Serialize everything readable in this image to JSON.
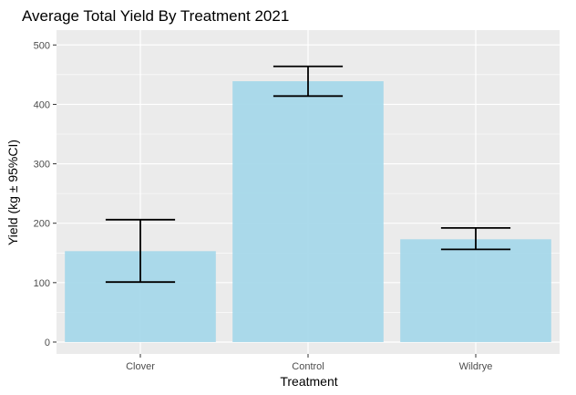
{
  "chart_data": {
    "type": "bar",
    "title": "Average Total Yield By Treatment 2021",
    "xlabel": "Treatment",
    "ylabel": "Yield (kg ± 95%CI)",
    "categories": [
      "Clover",
      "Control",
      "Wildrye"
    ],
    "values": [
      153,
      439,
      173
    ],
    "error_low": [
      101,
      414,
      156
    ],
    "error_high": [
      206,
      464,
      192
    ],
    "yticks": [
      0,
      100,
      200,
      300,
      400,
      500
    ],
    "ylim": [
      -20,
      525
    ],
    "grid": true,
    "legend": "none",
    "colors": {
      "bar": "#a6d8ea",
      "panel": "#ebebeb",
      "grid_major": "#ffffff",
      "error_bar": "#000000"
    }
  }
}
